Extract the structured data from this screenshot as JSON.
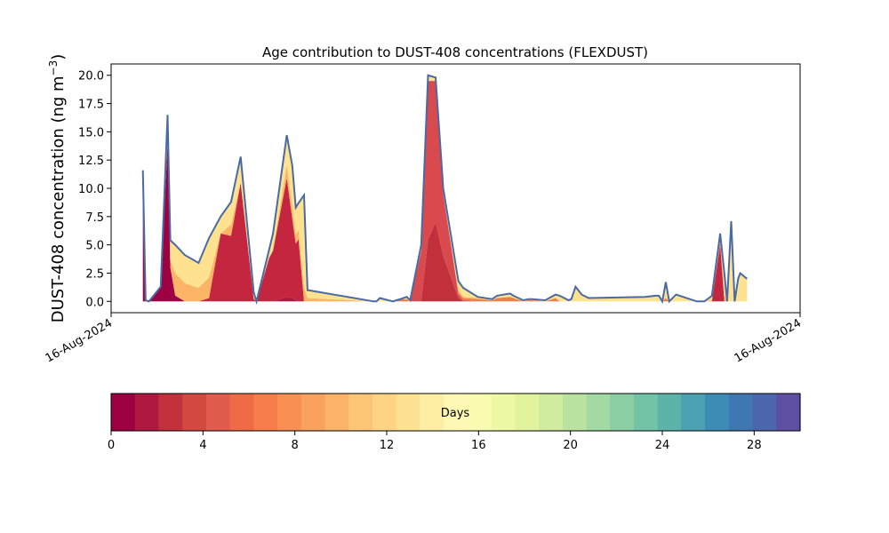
{
  "chart_data": {
    "type": "area",
    "title": "Age contribution to DUST-408 concentrations (FLEXDUST)",
    "ylabel": "DUST-408 concentration (ng m",
    "ylabel_unit_sup": "−3",
    "ylabel_close": ")",
    "xlabel": "",
    "x_tick_labels": [
      "16-Aug-2024",
      "16-Aug-2024"
    ],
    "x_range_index": [
      0,
      100
    ],
    "ylim": [
      -1.0,
      21.0
    ],
    "y_ticks": [
      0.0,
      2.5,
      5.0,
      7.5,
      10.0,
      12.5,
      15.0,
      17.5,
      20.0
    ],
    "y_tick_labels": [
      "0.0",
      "2.5",
      "5.0",
      "7.5",
      "10.0",
      "12.5",
      "15.0",
      "17.5",
      "20.0"
    ],
    "grid": false,
    "total_line_color": "#4a6aa5",
    "x": [
      4.6,
      5.0,
      5.5,
      7.2,
      8.2,
      8.6,
      9.3,
      10.7,
      12.7,
      14.2,
      15.9,
      17.4,
      18.8,
      20.7,
      21.1,
      22.9,
      23.5,
      25.5,
      26.3,
      26.8,
      27.2,
      28.0,
      28.5,
      38.1,
      38.5,
      39.0,
      40.9,
      41.4,
      42.0,
      42.9,
      43.4,
      45.0,
      46.0,
      47.1,
      48.2,
      50.4,
      51.1,
      53.2,
      55.3,
      56.0,
      57.9,
      58.4,
      59.8,
      60.6,
      61.1,
      63.0,
      64.5,
      65.1,
      66.4,
      66.8,
      67.4,
      68.3,
      69.3,
      77.5,
      79.0,
      79.5,
      80.0,
      80.5,
      81.0,
      82.0,
      85.0,
      86.1,
      87.2,
      88.4,
      89.0,
      89.4,
      90.0,
      90.5,
      91.0,
      91.3,
      92.3
    ],
    "total": [
      11.6,
      0.1,
      0.0,
      1.3,
      16.5,
      5.4,
      5.0,
      4.1,
      3.4,
      5.6,
      7.5,
      8.8,
      12.8,
      0.8,
      0.0,
      4.5,
      6.0,
      14.7,
      12.0,
      8.3,
      8.7,
      9.4,
      1.0,
      0.0,
      0.0,
      0.3,
      0.0,
      0.1,
      0.2,
      0.4,
      0.1,
      5.0,
      20.0,
      19.8,
      10.0,
      1.8,
      1.2,
      0.4,
      0.2,
      0.5,
      0.7,
      0.5,
      0.1,
      0.2,
      0.2,
      0.1,
      0.6,
      0.5,
      0.1,
      0.2,
      1.3,
      0.6,
      0.3,
      0.4,
      0.5,
      0.5,
      0.0,
      1.7,
      0.0,
      0.6,
      0.0,
      0.0,
      0.5,
      6.0,
      2.5,
      0.0,
      7.1,
      0.0,
      2.0,
      2.5,
      2.0
    ],
    "colorbar": {
      "label": "Days",
      "range": [
        0,
        30
      ],
      "ticks": [
        0,
        4,
        8,
        12,
        16,
        20,
        24,
        28
      ],
      "tick_labels": [
        "0",
        "4",
        "8",
        "12",
        "16",
        "20",
        "24",
        "28"
      ],
      "colors": [
        "#9e0142",
        "#b0193f",
        "#c2303c",
        "#d4493f",
        "#e25c4d",
        "#ee6b46",
        "#f67e4b",
        "#f98f53",
        "#fba15e",
        "#fdb469",
        "#fdc576",
        "#fed484",
        "#fee293",
        "#feeea4",
        "#fff8b5",
        "#f8fbb0",
        "#eef8a5",
        "#e2f39e",
        "#d0ec9e",
        "#bae3a1",
        "#a3d9a3",
        "#8bcea4",
        "#73c3a6",
        "#5cb3aa",
        "#4ba0b1",
        "#3d8bb7",
        "#3f77b3",
        "#4c66ad",
        "#5e4fa2"
      ]
    },
    "series": [
      {
        "name": "",
        "color": "#9e0142",
        "values": [
          11.0,
          0.1,
          0.0,
          1.3,
          14.0,
          3.0,
          0.5,
          0.0,
          0.0,
          0.0,
          0.0,
          0.0,
          0.0,
          0.0,
          0.0,
          0.0,
          0.0,
          0.0,
          0.0,
          0.0,
          0.0,
          0.0,
          0.0,
          0.0,
          0.0,
          0.0,
          0.0,
          0.0,
          0.0,
          0.0,
          0.0,
          0.0,
          0.0,
          0.0,
          0.0,
          0.0,
          0.0,
          0.0,
          0.0,
          0.0,
          0.0,
          0.0,
          0.0,
          0.0,
          0.0,
          0.0,
          0.0,
          0.0,
          0.0,
          0.0,
          0.0,
          0.0,
          0.0,
          0.0,
          0.0,
          0.0,
          0.0,
          0.0,
          0.0,
          0.0,
          0.0,
          0.0,
          0.0,
          0.0,
          0.0,
          0.0,
          0.0,
          0.0,
          0.0,
          0.0,
          0.0
        ]
      },
      {
        "name": "",
        "color": "#b0193f",
        "values": [
          0.0,
          0.0,
          0.0,
          0.0,
          0.0,
          0.0,
          0.0,
          0.0,
          0.0,
          0.0,
          0.0,
          0.0,
          0.0,
          0.0,
          0.0,
          0.0,
          0.0,
          0.4,
          0.3,
          0.1,
          0.0,
          0.0,
          0.0,
          0.0,
          0.0,
          0.0,
          0.0,
          0.0,
          0.0,
          0.0,
          0.0,
          0.0,
          0.0,
          0.0,
          0.0,
          0.0,
          0.0,
          0.0,
          0.0,
          0.0,
          0.0,
          0.0,
          0.0,
          0.0,
          0.0,
          0.0,
          0.0,
          0.0,
          0.0,
          0.0,
          0.0,
          0.0,
          0.0,
          0.0,
          0.0,
          0.0,
          0.0,
          0.0,
          0.0,
          0.0,
          0.0,
          0.0,
          0.0,
          0.0,
          0.0,
          0.0,
          0.0,
          0.0,
          0.0,
          0.0,
          0.0
        ]
      },
      {
        "name": "",
        "color": "#c2303c",
        "values": [
          0.0,
          0.0,
          0.0,
          0.0,
          0.0,
          0.0,
          0.0,
          0.0,
          0.0,
          0.0,
          0.0,
          0.0,
          0.0,
          0.0,
          0.0,
          0.0,
          0.0,
          0.0,
          0.0,
          0.0,
          0.0,
          0.0,
          0.0,
          0.0,
          0.0,
          0.0,
          0.0,
          0.0,
          0.0,
          0.0,
          0.0,
          0.0,
          5.5,
          7.0,
          4.0,
          0.3,
          0.0,
          0.0,
          0.0,
          0.0,
          0.0,
          0.0,
          0.0,
          0.0,
          0.0,
          0.0,
          0.0,
          0.0,
          0.0,
          0.0,
          0.0,
          0.0,
          0.0,
          0.0,
          0.0,
          0.0,
          0.0,
          0.0,
          0.0,
          0.0,
          0.0,
          0.0,
          0.0,
          0.0,
          0.0,
          0.0,
          0.0,
          0.0,
          0.0,
          0.0,
          0.0
        ]
      },
      {
        "name": "",
        "color": "#c5263f",
        "values": [
          0.0,
          0.0,
          0.0,
          0.0,
          0.0,
          0.0,
          0.0,
          0.0,
          0.0,
          0.3,
          6.0,
          5.8,
          10.5,
          0.2,
          0.0,
          3.8,
          4.5,
          10.5,
          7.0,
          5.0,
          5.5,
          0.0,
          0.0,
          0.0,
          0.0,
          0.0,
          0.0,
          0.0,
          0.0,
          0.0,
          0.0,
          0.0,
          0.0,
          0.0,
          0.0,
          0.0,
          0.0,
          0.0,
          0.0,
          0.0,
          0.0,
          0.0,
          0.0,
          0.0,
          0.0,
          0.0,
          0.0,
          0.0,
          0.0,
          0.0,
          0.0,
          0.0,
          0.0,
          0.0,
          0.0,
          0.0,
          0.0,
          0.0,
          0.0,
          0.0,
          0.0,
          0.0,
          0.0,
          5.0,
          0.0,
          0.0,
          0.0,
          0.0,
          0.0,
          0.0,
          0.0
        ]
      },
      {
        "name": "",
        "color": "#d84a4d",
        "values": [
          0.0,
          0.0,
          0.0,
          0.0,
          0.0,
          0.0,
          0.0,
          0.0,
          0.0,
          0.0,
          0.0,
          0.0,
          0.0,
          0.0,
          0.0,
          0.0,
          0.0,
          0.0,
          0.0,
          0.0,
          0.0,
          0.0,
          0.0,
          0.0,
          0.0,
          0.0,
          0.0,
          0.0,
          0.0,
          0.0,
          0.0,
          4.5,
          14.0,
          12.5,
          5.5,
          0.3,
          0.1,
          0.0,
          0.0,
          0.0,
          0.0,
          0.0,
          0.0,
          0.0,
          0.0,
          0.0,
          0.0,
          0.0,
          0.0,
          0.0,
          0.0,
          0.0,
          0.0,
          0.0,
          0.0,
          0.0,
          0.0,
          0.0,
          0.0,
          0.0,
          0.0,
          0.0,
          0.0,
          0.0,
          0.0,
          0.0,
          0.0,
          0.0,
          0.0,
          0.0,
          0.0
        ]
      },
      {
        "name": "",
        "color": "#f07e4a",
        "values": [
          0.0,
          0.0,
          0.0,
          0.0,
          0.0,
          0.0,
          0.0,
          0.0,
          0.0,
          0.0,
          0.0,
          0.0,
          0.0,
          0.0,
          0.0,
          0.0,
          0.0,
          0.0,
          0.0,
          0.0,
          0.0,
          0.0,
          0.0,
          0.0,
          0.0,
          0.0,
          0.0,
          0.1,
          0.2,
          0.2,
          0.0,
          0.0,
          0.0,
          0.0,
          0.0,
          0.2,
          0.2,
          0.2,
          0.1,
          0.3,
          0.4,
          0.3,
          0.0,
          0.1,
          0.1,
          0.0,
          0.3,
          0.0,
          0.0,
          0.0,
          0.0,
          0.0,
          0.0,
          0.0,
          0.0,
          0.0,
          0.0,
          0.3,
          0.0,
          0.0,
          0.0,
          0.0,
          0.0,
          0.3,
          0.0,
          0.0,
          0.0,
          0.0,
          0.0,
          0.0,
          0.0
        ]
      },
      {
        "name": "",
        "color": "#fcb466",
        "values": [
          0.0,
          0.0,
          0.0,
          0.0,
          0.7,
          0.7,
          2.0,
          1.6,
          1.2,
          1.8,
          0.0,
          1.0,
          0.0,
          0.2,
          0.0,
          0.0,
          0.0,
          1.2,
          1.0,
          0.8,
          0.8,
          1.2,
          0.3,
          0.0,
          0.0,
          0.0,
          0.0,
          0.0,
          0.0,
          0.0,
          0.0,
          0.0,
          0.0,
          0.0,
          0.0,
          0.2,
          0.1,
          0.1,
          0.0,
          0.0,
          0.0,
          0.0,
          0.0,
          0.0,
          0.0,
          0.0,
          0.0,
          0.0,
          0.0,
          0.0,
          0.0,
          0.0,
          0.0,
          0.0,
          0.0,
          0.0,
          0.0,
          0.0,
          0.0,
          0.0,
          0.0,
          0.0,
          0.1,
          0.3,
          0.5,
          0.0,
          0.0,
          0.0,
          0.0,
          0.0,
          0.0
        ]
      },
      {
        "name": "",
        "color": "#fee290",
        "values": [
          0.6,
          0.0,
          0.0,
          0.0,
          1.8,
          1.7,
          2.5,
          2.5,
          2.2,
          3.5,
          1.5,
          2.0,
          2.3,
          0.4,
          0.0,
          0.7,
          1.5,
          2.8,
          3.7,
          2.4,
          2.4,
          8.2,
          0.7,
          0.0,
          0.0,
          0.3,
          0.0,
          0.0,
          0.0,
          0.2,
          0.1,
          0.5,
          0.5,
          0.3,
          0.5,
          0.8,
          0.8,
          0.1,
          0.1,
          0.2,
          0.3,
          0.2,
          0.1,
          0.1,
          0.1,
          0.1,
          0.3,
          0.5,
          0.1,
          0.2,
          1.3,
          0.6,
          0.3,
          0.4,
          0.5,
          0.5,
          0.0,
          1.4,
          0.0,
          0.6,
          0.0,
          0.0,
          0.4,
          0.4,
          2.0,
          0.0,
          7.1,
          0.0,
          2.0,
          2.5,
          2.0
        ]
      }
    ]
  }
}
